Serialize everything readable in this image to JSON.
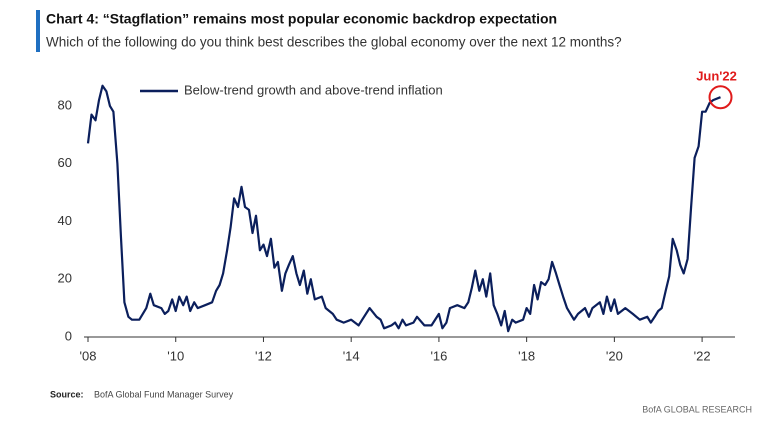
{
  "chart_data": {
    "type": "line",
    "title": "Chart 4: “Stagflation” remains most popular economic backdrop expectation",
    "subtitle": "Which of the following do you think best describes the global economy over the next 12 months?",
    "annotation": "Jun'22",
    "source_label": "Source:",
    "source": "BofA Global Fund Manager Survey",
    "credit": "BofA GLOBAL RESEARCH",
    "x": [
      2008.0,
      2008.08,
      2008.17,
      2008.25,
      2008.33,
      2008.42,
      2008.5,
      2008.58,
      2008.67,
      2008.75,
      2008.83,
      2008.92,
      2009.0,
      2009.17,
      2009.33,
      2009.42,
      2009.5,
      2009.67,
      2009.75,
      2009.83,
      2009.92,
      2010.0,
      2010.08,
      2010.17,
      2010.25,
      2010.33,
      2010.42,
      2010.5,
      2010.67,
      2010.83,
      2010.92,
      2011.0,
      2011.08,
      2011.17,
      2011.25,
      2011.33,
      2011.42,
      2011.5,
      2011.58,
      2011.67,
      2011.75,
      2011.83,
      2011.92,
      2012.0,
      2012.08,
      2012.17,
      2012.25,
      2012.33,
      2012.42,
      2012.5,
      2012.58,
      2012.67,
      2012.75,
      2012.83,
      2012.92,
      2013.0,
      2013.08,
      2013.17,
      2013.33,
      2013.42,
      2013.58,
      2013.67,
      2013.83,
      2014.0,
      2014.17,
      2014.25,
      2014.42,
      2014.58,
      2014.67,
      2014.75,
      2014.92,
      2015.0,
      2015.08,
      2015.17,
      2015.25,
      2015.42,
      2015.5,
      2015.67,
      2015.83,
      2016.0,
      2016.08,
      2016.17,
      2016.25,
      2016.42,
      2016.58,
      2016.67,
      2016.75,
      2016.83,
      2016.92,
      2017.0,
      2017.08,
      2017.17,
      2017.25,
      2017.33,
      2017.42,
      2017.5,
      2017.58,
      2017.67,
      2017.75,
      2017.92,
      2018.0,
      2018.08,
      2018.17,
      2018.25,
      2018.33,
      2018.42,
      2018.5,
      2018.58,
      2018.67,
      2018.75,
      2018.83,
      2018.92,
      2019.0,
      2019.08,
      2019.17,
      2019.33,
      2019.42,
      2019.5,
      2019.67,
      2019.75,
      2019.83,
      2019.92,
      2020.0,
      2020.08,
      2020.25,
      2020.42,
      2020.58,
      2020.75,
      2020.83,
      2020.92,
      2021.0,
      2021.08,
      2021.17,
      2021.25,
      2021.33,
      2021.42,
      2021.5,
      2021.58,
      2021.67,
      2021.75,
      2021.83,
      2021.92,
      2022.0,
      2022.08,
      2022.17,
      2022.25,
      2022.42
    ],
    "series": [
      {
        "name": "Below-trend growth and above-trend inflation",
        "color": "#0b1f5c",
        "values": [
          67,
          77,
          75,
          82,
          87,
          85,
          80,
          78,
          60,
          35,
          12,
          7,
          6,
          6,
          10,
          15,
          11,
          10,
          8,
          9,
          13,
          9,
          14,
          11,
          14,
          9,
          12,
          10,
          11,
          12,
          16,
          18,
          22,
          30,
          38,
          48,
          45,
          52,
          45,
          44,
          36,
          42,
          30,
          32,
          28,
          34,
          24,
          26,
          16,
          22,
          25,
          28,
          22,
          18,
          23,
          15,
          20,
          13,
          14,
          10,
          8,
          6,
          5,
          6,
          4,
          6,
          10,
          7,
          6,
          3,
          4,
          5,
          3,
          6,
          4,
          5,
          7,
          4,
          4,
          8,
          3,
          5,
          10,
          11,
          10,
          12,
          17,
          23,
          16,
          20,
          14,
          22,
          11,
          8,
          4,
          9,
          2,
          6,
          5,
          6,
          10,
          8,
          18,
          13,
          19,
          18,
          20,
          26,
          22,
          18,
          14,
          10,
          8,
          6,
          8,
          10,
          7,
          10,
          12,
          8,
          14,
          9,
          13,
          8,
          10,
          8,
          6,
          7,
          5,
          7,
          9,
          10,
          16,
          21,
          34,
          30,
          25,
          22,
          27,
          45,
          62,
          66,
          78,
          78,
          81,
          82,
          83
        ]
      }
    ],
    "xlim": [
      2008,
      2022.75
    ],
    "ylim": [
      0,
      90
    ],
    "xticks": [
      {
        "value": 2008,
        "label": "'08"
      },
      {
        "value": 2010,
        "label": "'10"
      },
      {
        "value": 2012,
        "label": "'12"
      },
      {
        "value": 2014,
        "label": "'14"
      },
      {
        "value": 2016,
        "label": "'16"
      },
      {
        "value": 2018,
        "label": "'18"
      },
      {
        "value": 2020,
        "label": "'20"
      },
      {
        "value": 2022,
        "label": "'22"
      }
    ],
    "yticks": [
      0,
      20,
      40,
      60,
      80
    ]
  }
}
